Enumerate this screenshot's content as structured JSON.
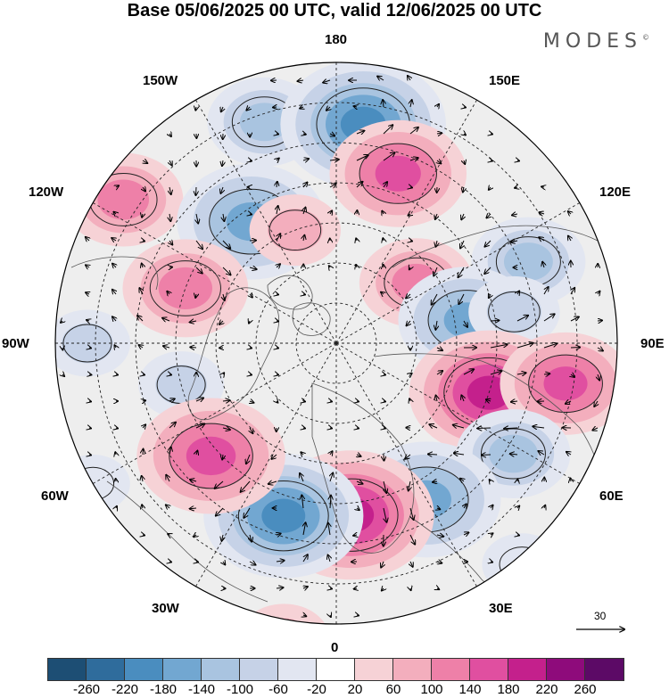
{
  "title": "Base 05/06/2025 00 UTC, valid 12/06/2025 00 UTC",
  "brand": "MODES",
  "brand_mark": "©",
  "map_labels": {
    "top": "180",
    "bottom": "0",
    "left": "90W",
    "right": "90E",
    "upper_left_1": "150W",
    "upper_left_2": "120W",
    "lower_left_1": "60W",
    "lower_left_2": "30W",
    "upper_right_1": "150E",
    "upper_right_2": "120E",
    "lower_right_1": "60E",
    "lower_right_2": "30E"
  },
  "vector_scale": {
    "value": "30"
  },
  "colorbar": {
    "colors": [
      "#1d4e74",
      "#2f6c9c",
      "#4a8dbf",
      "#72a7d1",
      "#a9c4e0",
      "#c6d2e7",
      "#e2e6f1",
      "#ffffff",
      "#f6d2d6",
      "#f3aebd",
      "#ee80a8",
      "#e04fa0",
      "#c4208c",
      "#8e0b7b",
      "#5c0a66"
    ],
    "ticks": [
      "-260",
      "-220",
      "-180",
      "-140",
      "-100",
      "-60",
      "-20",
      "20",
      "60",
      "100",
      "140",
      "180",
      "220",
      "260"
    ]
  },
  "anomaly_centers": [
    {
      "lon": -162,
      "colat": 58,
      "value": -110
    },
    {
      "lon": 173,
      "colat": 55,
      "value": -200
    },
    {
      "lon": 160,
      "colat": 45,
      "value": 150
    },
    {
      "lon": -124,
      "colat": 64,
      "value": 120
    },
    {
      "lon": -145,
      "colat": 37,
      "value": -170
    },
    {
      "lon": -160,
      "colat": 30,
      "value": 70
    },
    {
      "lon": -110,
      "colat": 40,
      "value": 130
    },
    {
      "lon": -90,
      "colat": 62,
      "value": -60
    },
    {
      "lon": -75,
      "colat": 40,
      "value": -60
    },
    {
      "lon": 127,
      "colat": 25,
      "value": 110
    },
    {
      "lon": 113,
      "colat": 52,
      "value": -110
    },
    {
      "lon": 100,
      "colat": 33,
      "value": -150
    },
    {
      "lon": 100,
      "colat": 45,
      "value": -70
    },
    {
      "lon": 72,
      "colat": 40,
      "value": 190
    },
    {
      "lon": 80,
      "colat": 58,
      "value": 140
    },
    {
      "lon": 58,
      "colat": 52,
      "value": -110
    },
    {
      "lon": 30,
      "colat": 45,
      "value": -170
    },
    {
      "lon": 5,
      "colat": 43,
      "value": 200
    },
    {
      "lon": -17,
      "colat": 45,
      "value": -190
    },
    {
      "lon": -48,
      "colat": 42,
      "value": 170
    },
    {
      "lon": -10,
      "colat": 75,
      "value": 70
    },
    {
      "lon": -60,
      "colat": 70,
      "value": -40
    },
    {
      "lon": 40,
      "colat": 72,
      "value": -50
    }
  ]
}
